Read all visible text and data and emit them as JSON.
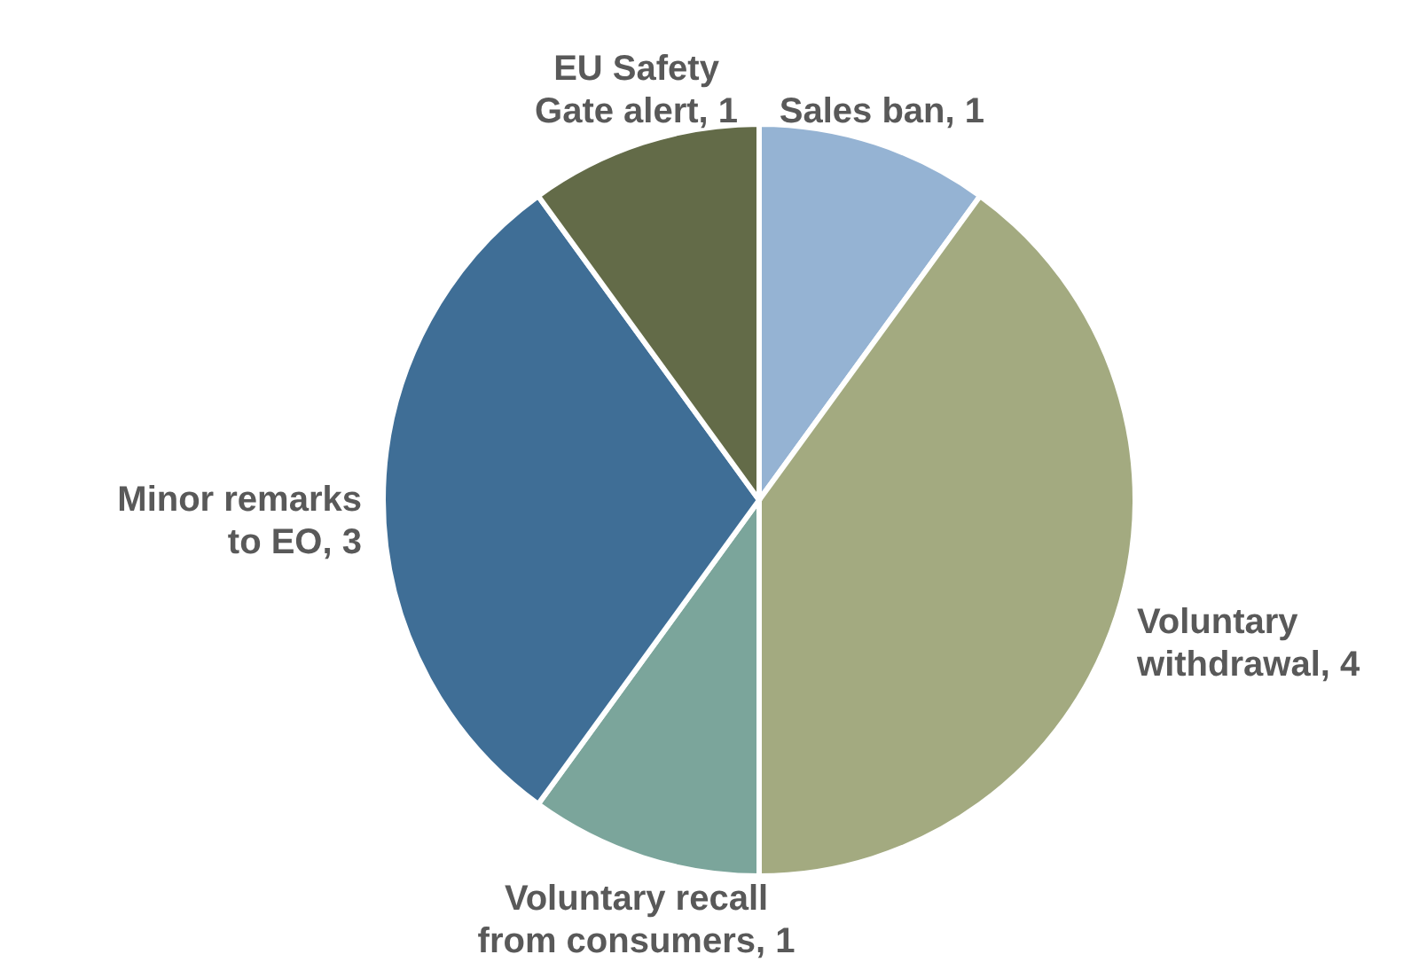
{
  "chart_data": {
    "type": "pie",
    "categories": [
      "Sales ban",
      "Voluntary withdrawal",
      "Voluntary recall from consumers",
      "Minor remarks to EO",
      "EU Safety Gate alert"
    ],
    "values": [
      1,
      4,
      1,
      3,
      1
    ],
    "value_labels": [
      ", 1",
      ", 4",
      ", 1",
      ", 3",
      ", 1"
    ],
    "colors": [
      "#95b3d3",
      "#a3aa80",
      "#7ba59b",
      "#3f6e96",
      "#636b48"
    ],
    "legend": false
  }
}
